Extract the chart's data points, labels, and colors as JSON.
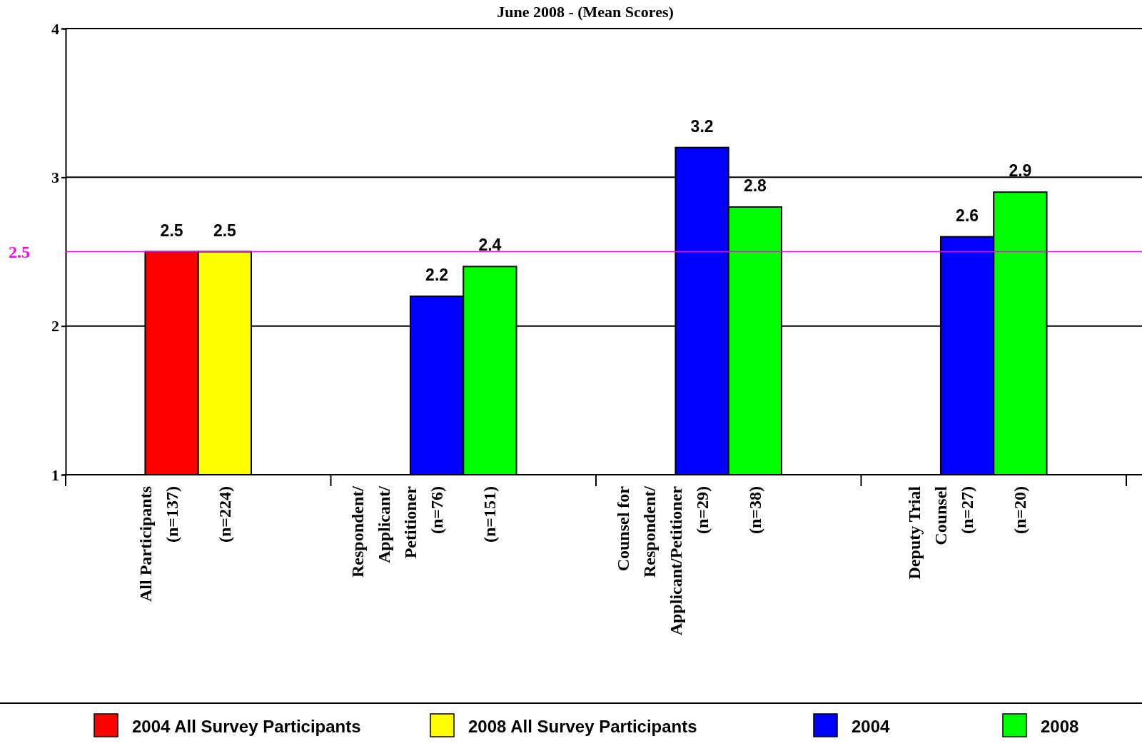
{
  "chart_data": {
    "type": "bar",
    "title": "June 2008 - (Mean Scores)",
    "categories": [
      "All Participants\n(n=137)",
      "(n=224)",
      "Respondent/\nApplicant/\nPetitioner\n(n=76)",
      "(n=151)",
      "Counsel for\nRespondent/\nApplicant/Petitioner\n(n=29)",
      "(n=38)",
      "Deputy Trial\nCounsel\n(n=27)",
      "(n=20)"
    ],
    "series": [
      {
        "name": "2004 All Survey Participants",
        "color": "#ff0000",
        "values": [
          2.5,
          null,
          null,
          null,
          null,
          null,
          null,
          null
        ]
      },
      {
        "name": "2008 All Survey Participants",
        "color": "#ffff00",
        "values": [
          null,
          2.5,
          null,
          null,
          null,
          null,
          null,
          null
        ]
      },
      {
        "name": "2004",
        "color": "#0000ff",
        "values": [
          null,
          null,
          2.2,
          null,
          3.2,
          null,
          2.6,
          null
        ]
      },
      {
        "name": "2008",
        "color": "#00ff00",
        "values": [
          null,
          null,
          null,
          2.4,
          null,
          2.8,
          null,
          2.9
        ]
      }
    ],
    "ylim": [
      1,
      4
    ],
    "yticks": [
      1,
      2,
      3,
      4
    ],
    "grid": "y",
    "legend": "bottom",
    "data_labels": true,
    "ref_lines": [
      {
        "axis": "y",
        "value": 2.5,
        "label": "2.5",
        "color": "#ff00ff"
      }
    ]
  }
}
